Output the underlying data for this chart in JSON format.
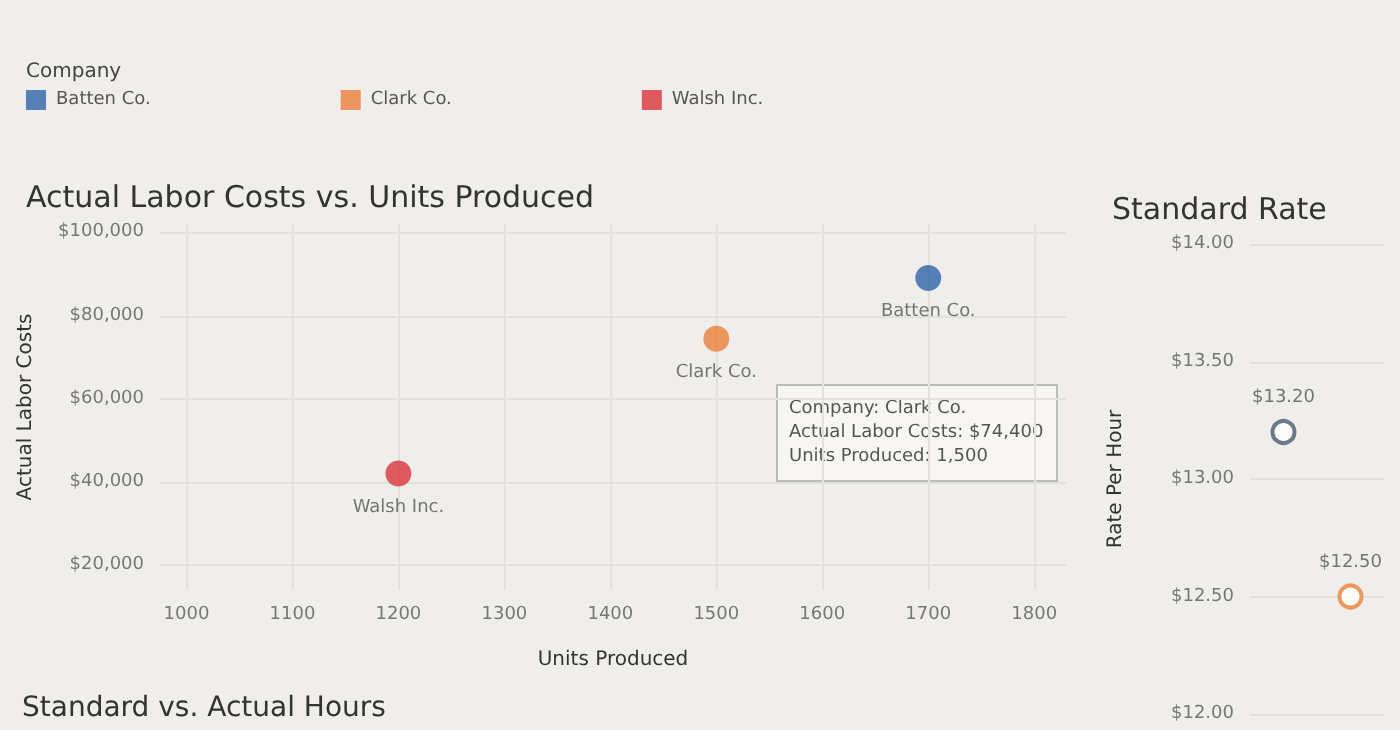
{
  "chart_data": [
    {
      "type": "scatter",
      "title": "Actual Labor Costs vs. Units Produced",
      "xlabel": "Units Produced",
      "ylabel": "Actual Labor Costs",
      "legend_title": "Company",
      "legend": "top left",
      "grid": true,
      "marker": "circle",
      "xlim": [
        975,
        1830
      ],
      "xticks": [
        1000,
        1100,
        1200,
        1300,
        1400,
        1500,
        1600,
        1700,
        1800
      ],
      "ylim": [
        14000,
        102000
      ],
      "yticks": [
        {
          "value": 20000,
          "label": "$20,000"
        },
        {
          "value": 40000,
          "label": "$40,000"
        },
        {
          "value": 60000,
          "label": "$60,000"
        },
        {
          "value": 80000,
          "label": "$80,000"
        },
        {
          "value": 100000,
          "label": "$100,000"
        }
      ],
      "series": [
        {
          "name": "Batten Co.",
          "color": "#2f63a8",
          "x": [
            1700
          ],
          "values": [
            89000
          ]
        },
        {
          "name": "Clark Co.",
          "color": "#e8803a",
          "x": [
            1500
          ],
          "values": [
            74400
          ]
        },
        {
          "name": "Walsh Inc.",
          "color": "#d9343c",
          "x": [
            1200
          ],
          "values": [
            42000
          ]
        }
      ],
      "annotations": [
        "Company: Clark Co.\nActual Labor Costs: $74,400\nUnits Produced: 1,500"
      ]
    },
    {
      "type": "scatter",
      "title": "Standard Rate",
      "ylabel": "Rate Per Hour",
      "grid": "y",
      "marker": "circle",
      "tick_labels": "y",
      "categories": [
        null,
        null
      ],
      "ylim": [
        12,
        14
      ],
      "yticks": [
        {
          "value": 12,
          "label": "$12.00"
        },
        {
          "value": 12.5,
          "label": "$12.50"
        },
        {
          "value": 13,
          "label": "$13.00"
        },
        {
          "value": 13.5,
          "label": "$13.50"
        },
        {
          "value": 14,
          "label": "$14.00"
        }
      ],
      "series": [
        {
          "colors": [
            "#4a5a70",
            "#e8803a"
          ],
          "values": [
            13.2,
            12.5
          ],
          "value_labels": [
            "$13.20",
            "$12.50"
          ]
        }
      ]
    },
    {
      "type": "other",
      "title": "Standard vs. Actual Hours"
    }
  ]
}
